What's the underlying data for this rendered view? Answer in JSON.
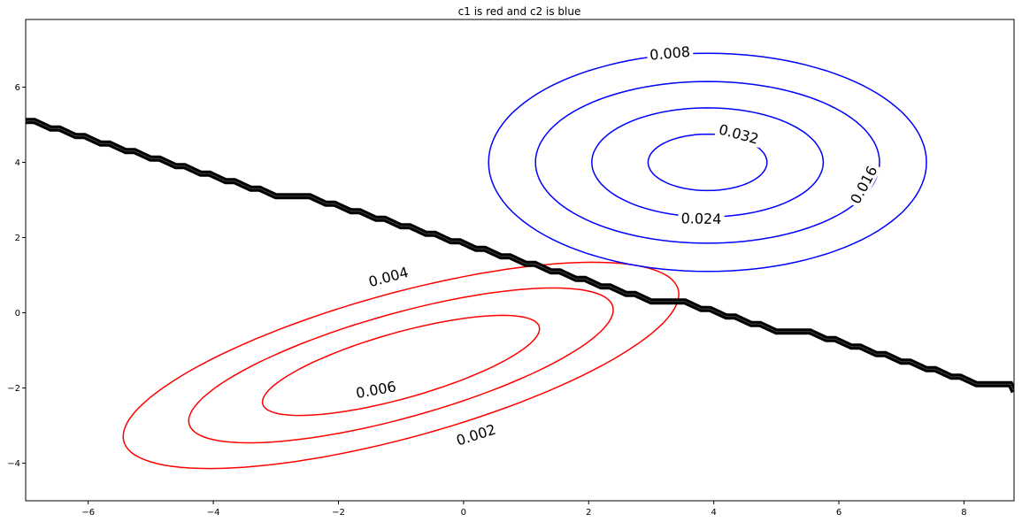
{
  "chart_data": {
    "type": "contour",
    "title": "c1 is red and c2 is blue",
    "xlabel": "",
    "ylabel": "",
    "xlim": [
      -7,
      8.8
    ],
    "ylim": [
      -5,
      7.8
    ],
    "grid": false,
    "x_ticks": [
      -6,
      -4,
      -2,
      0,
      2,
      4,
      6,
      8
    ],
    "y_ticks": [
      -4,
      -2,
      0,
      2,
      4,
      6
    ],
    "x_tick_labels": [
      "−6",
      "−4",
      "−2",
      "0",
      "2",
      "4",
      "6",
      "8"
    ],
    "y_tick_labels": [
      "−4",
      "−2",
      "0",
      "2",
      "4",
      "6"
    ],
    "series": [
      {
        "color": "#ff0000",
        "levels": [
          {
            "label": "0.002",
            "center": [
              -1.0,
              -1.4
            ],
            "semi_axes": [
              4.9,
              1.8
            ],
            "angle_deg": 27,
            "label_at": [
              0.2,
              -3.25
            ]
          },
          {
            "label": "0.004",
            "center": [
              -1.0,
              -1.4
            ],
            "semi_axes": [
              3.75,
              1.3
            ],
            "angle_deg": 27,
            "label_at": [
              -1.2,
              0.95
            ]
          },
          {
            "label": "0.006",
            "center": [
              -1.0,
              -1.4
            ],
            "semi_axes": [
              2.45,
              0.82
            ],
            "angle_deg": 27,
            "label_at": [
              -1.4,
              -2.05
            ]
          }
        ]
      },
      {
        "color": "#0000ff",
        "levels": [
          {
            "label": "0.008",
            "center": [
              3.9,
              4.0
            ],
            "semi_axes": [
              3.5,
              2.9
            ],
            "angle_deg": 0,
            "label_at": [
              3.3,
              6.9
            ]
          },
          {
            "label": "0.016",
            "center": [
              3.9,
              4.0
            ],
            "semi_axes": [
              2.75,
              2.15
            ],
            "angle_deg": 0,
            "label_at": [
              6.4,
              3.4
            ],
            "label_rotate": -62
          },
          {
            "label": "0.024",
            "center": [
              3.9,
              4.0
            ],
            "semi_axes": [
              1.85,
              1.45
            ],
            "angle_deg": 0,
            "label_at": [
              3.8,
              2.5
            ]
          },
          {
            "label": "0.032",
            "center": [
              3.9,
              4.0
            ],
            "semi_axes": [
              0.95,
              0.75
            ],
            "angle_deg": 0,
            "label_at": [
              4.4,
              4.75
            ],
            "label_rotate": 15
          }
        ]
      }
    ],
    "decision_boundary": {
      "color": "#000000",
      "x": [
        -7.0,
        -6.6,
        -6.2,
        -5.8,
        -5.4,
        -5.0,
        -4.6,
        -4.2,
        -3.8,
        -3.4,
        -3.0,
        -2.6,
        -2.2,
        -1.8,
        -1.4,
        -1.0,
        -0.6,
        -0.2,
        0.2,
        0.6,
        1.0,
        1.4,
        1.8,
        2.2,
        2.6,
        3.0,
        3.4,
        3.8,
        4.2,
        4.6,
        5.0,
        5.4,
        5.8,
        6.2,
        6.6,
        7.0,
        7.4,
        7.8,
        8.2,
        8.6,
        8.8
      ],
      "y": [
        5.1,
        4.9,
        4.7,
        4.5,
        4.3,
        4.1,
        3.9,
        3.7,
        3.5,
        3.3,
        3.1,
        3.1,
        2.9,
        2.7,
        2.5,
        2.3,
        2.1,
        1.9,
        1.7,
        1.5,
        1.3,
        1.1,
        0.9,
        0.7,
        0.5,
        0.3,
        0.3,
        0.1,
        -0.1,
        -0.3,
        -0.5,
        -0.5,
        -0.7,
        -0.9,
        -1.1,
        -1.3,
        -1.5,
        -1.7,
        -1.9,
        -1.9,
        -2.1
      ]
    }
  }
}
